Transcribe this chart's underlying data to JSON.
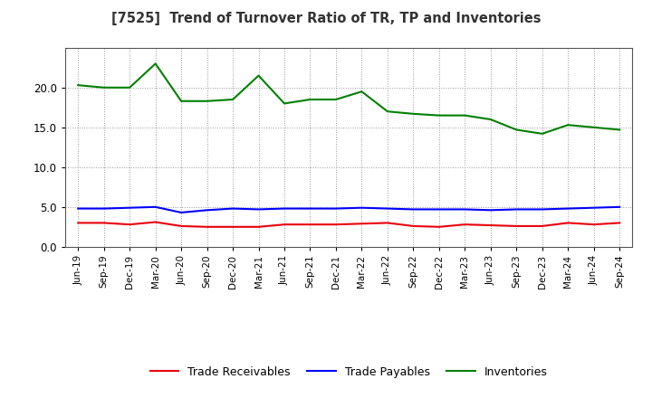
{
  "title": "[7525]  Trend of Turnover Ratio of TR, TP and Inventories",
  "x_labels": [
    "Jun-19",
    "Sep-19",
    "Dec-19",
    "Mar-20",
    "Jun-20",
    "Sep-20",
    "Dec-20",
    "Mar-21",
    "Jun-21",
    "Sep-21",
    "Dec-21",
    "Mar-22",
    "Jun-22",
    "Sep-22",
    "Dec-22",
    "Mar-23",
    "Jun-23",
    "Sep-23",
    "Dec-23",
    "Mar-24",
    "Jun-24",
    "Sep-24"
  ],
  "trade_receivables": [
    3.0,
    3.0,
    2.8,
    3.1,
    2.6,
    2.5,
    2.5,
    2.5,
    2.8,
    2.8,
    2.8,
    2.9,
    3.0,
    2.6,
    2.5,
    2.8,
    2.7,
    2.6,
    2.6,
    3.0,
    2.8,
    3.0
  ],
  "trade_payables": [
    4.8,
    4.8,
    4.9,
    5.0,
    4.3,
    4.6,
    4.8,
    4.7,
    4.8,
    4.8,
    4.8,
    4.9,
    4.8,
    4.7,
    4.7,
    4.7,
    4.6,
    4.7,
    4.7,
    4.8,
    4.9,
    5.0
  ],
  "inventories": [
    20.3,
    20.0,
    20.0,
    23.0,
    18.3,
    18.3,
    18.5,
    21.5,
    18.0,
    18.5,
    18.5,
    19.5,
    17.0,
    16.7,
    16.5,
    16.5,
    16.0,
    14.7,
    14.2,
    15.3,
    15.0,
    14.7
  ],
  "color_tr": "#e8000d",
  "color_tp": "#0000ff",
  "color_inv": "#008000",
  "ylim": [
    0.0,
    25.0
  ],
  "yticks": [
    0.0,
    5.0,
    10.0,
    15.0,
    20.0
  ],
  "legend_labels": [
    "Trade Receivables",
    "Trade Payables",
    "Inventories"
  ],
  "bg_color": "#ffffff",
  "grid_color": "#999999"
}
